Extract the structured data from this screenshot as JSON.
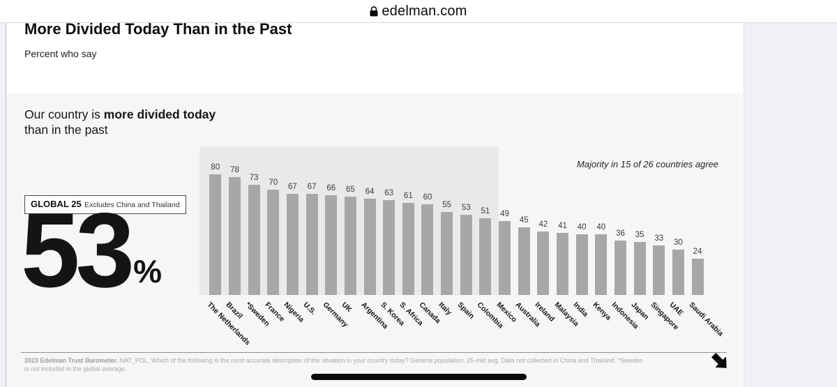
{
  "browser": {
    "address": "edelman.com"
  },
  "slide": {
    "title": "More Divided Today Than in the Past",
    "subtitle": "Percent who say",
    "statement": {
      "part1": "Our country is ",
      "bold": "more divided today",
      "part2": "than in the past"
    },
    "global_box": {
      "label": "GLOBAL 25",
      "note": "Excludes China and Thailand"
    },
    "global_value": "53",
    "global_unit": "%",
    "footnote_bold": "2023 Edelman Trust Barometer.",
    "footnote_rest": " NAT_POL. Which of the following is the most accurate description of the situation in your country today? General population, 25-mkt avg. Data not collected in China and Thailand. *Sweden is not included in the global average."
  },
  "chart_data": {
    "type": "bar",
    "title": "Our country is more divided today than in the past",
    "annotation": "Majority in 15 of 26 countries agree",
    "categories": [
      "The Netherlands",
      "Brazil",
      "*Sweden",
      "France",
      "Nigeria",
      "U.S.",
      "Germany",
      "UK",
      "Argentina",
      "S. Korea",
      "S. Africa",
      "Canada",
      "Italy",
      "Spain",
      "Colombia",
      "Mexico",
      "Australia",
      "Ireland",
      "Malaysia",
      "India",
      "Kenya",
      "Indonesia",
      "Japan",
      "Singapore",
      "UAE",
      "Saudi Arabia"
    ],
    "values": [
      80,
      78,
      73,
      70,
      67,
      67,
      66,
      65,
      64,
      63,
      61,
      60,
      55,
      53,
      51,
      49,
      45,
      42,
      41,
      40,
      40,
      36,
      35,
      33,
      30,
      24
    ],
    "global_average": 53,
    "highlight_count": 15,
    "ylim": [
      0,
      100
    ],
    "legend_position": "none",
    "grid": false,
    "bar_color": "#a7a7a7",
    "highlight_color": "#e9e9e9"
  },
  "colors": {
    "bar": "#a7a7a7",
    "highlight": "#e9e9e9",
    "slide_bg": "#f6f6f6",
    "accent_text": "#141414"
  }
}
